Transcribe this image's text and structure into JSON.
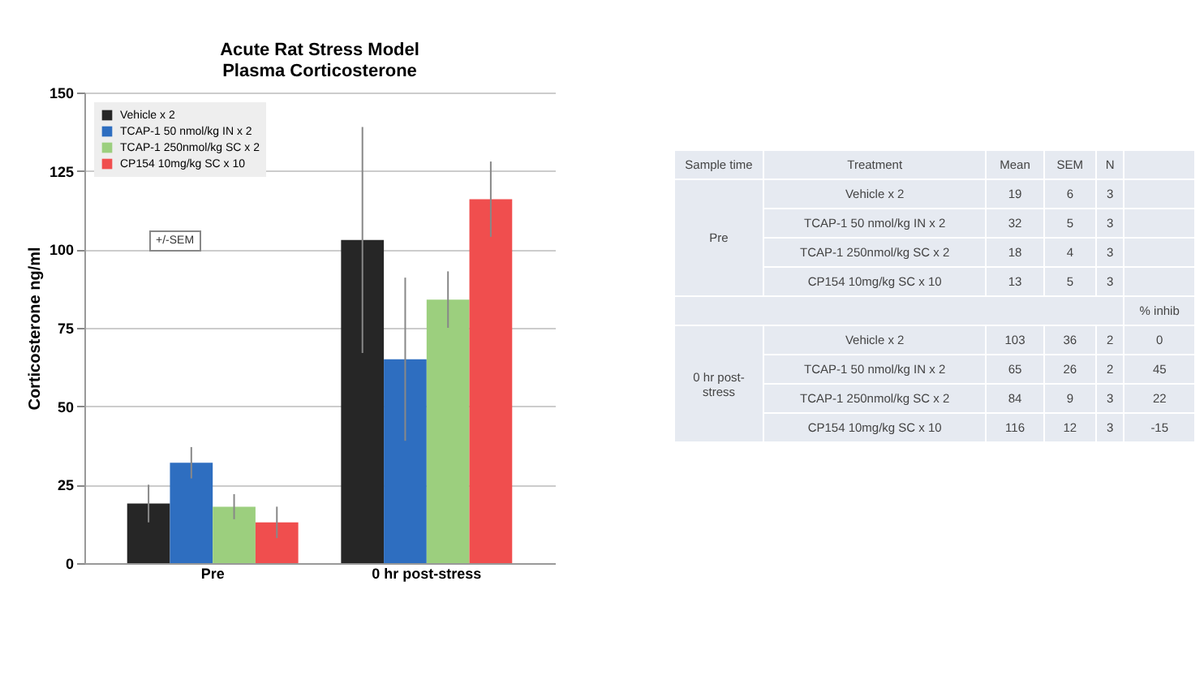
{
  "chart_data": {
    "type": "bar",
    "title": "Acute Rat Stress Model\nPlasma Corticosterone",
    "ylabel": "Corticosterone ng/ml",
    "categories": [
      "Pre",
      "0 hr post-stress"
    ],
    "series": [
      {
        "name": "Vehicle x 2",
        "color": "#262626",
        "values": [
          19,
          103
        ],
        "errors": [
          6,
          36
        ]
      },
      {
        "name": "TCAP-1 50 nmol/kg IN x 2",
        "color": "#2e6ec0",
        "values": [
          32,
          65
        ],
        "errors": [
          5,
          26
        ]
      },
      {
        "name": "TCAP-1 250nmol/kg SC x 2",
        "color": "#9ccf7e",
        "values": [
          18,
          84
        ],
        "errors": [
          4,
          9
        ]
      },
      {
        "name": "CP154 10mg/kg SC x 10",
        "color": "#f04e4e",
        "values": [
          13,
          116
        ],
        "errors": [
          5,
          12
        ]
      }
    ],
    "ylim": [
      0,
      150
    ],
    "yticks": [
      0,
      25,
      50,
      75,
      100,
      125,
      150
    ],
    "grid": "y",
    "legend": "top left",
    "annotations": [
      "+/-SEM",
      "Sample time",
      "Treatment",
      "Mean",
      "SEM",
      "N",
      "Pre",
      "Vehicle x 2",
      "19",
      "6",
      "3",
      "TCAP-1 50 nmol/kg IN x 2",
      "32",
      "5",
      "3",
      "TCAP-1 250nmol/kg SC x 2",
      "18",
      "4",
      "3",
      "CP154 10mg/kg SC x 10",
      "13",
      "5",
      "3",
      "% inhib",
      "0 hr post-stress",
      "Vehicle x 2",
      "103",
      "36",
      "2",
      "0",
      "TCAP-1 50 nmol/kg IN x 2",
      "65",
      "26",
      "2",
      "45",
      "TCAP-1 250nmol/kg SC x 2",
      "84",
      "9",
      "3",
      "22",
      "CP154 10mg/kg SC x 10",
      "116",
      "12",
      "3",
      "-15"
    ]
  }
}
